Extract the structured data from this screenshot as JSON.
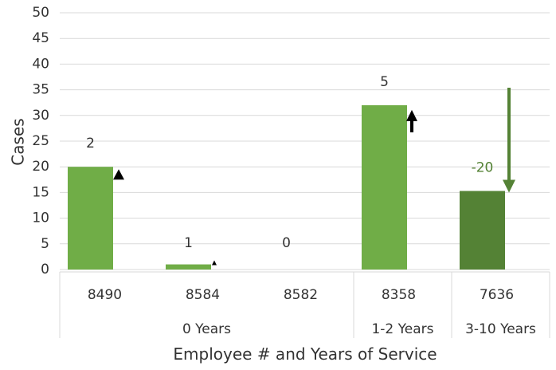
{
  "chart_data": {
    "type": "bar",
    "xlabel": "Employee # and Years of Service",
    "ylabel": "Cases",
    "ylim": [
      0,
      50
    ],
    "yticks": [
      0,
      5,
      10,
      15,
      20,
      25,
      30,
      35,
      40,
      45,
      50
    ],
    "grid": true,
    "categories": [
      "8490",
      "8584",
      "8582",
      "8358",
      "7636"
    ],
    "values": [
      20,
      1,
      0,
      32,
      15.3
    ],
    "data_labels": [
      "2",
      "1",
      "0",
      "5",
      "-20"
    ],
    "groups": [
      {
        "label": "0 Years",
        "span": [
          0,
          2
        ]
      },
      {
        "label": "1-2 Years",
        "span": [
          3,
          3
        ]
      },
      {
        "label": "3-10 Years",
        "span": [
          4,
          4
        ]
      }
    ],
    "trend_markers": [
      "up-small",
      "up-small",
      "none",
      "up-arrow",
      "down-arrow"
    ],
    "colors": {
      "bar": "#70AD47",
      "bar_dark": "#548235",
      "label_dark": "#333333",
      "label_accent": "#548235",
      "grid": "#D9D9D9",
      "marker": "#000000"
    }
  }
}
